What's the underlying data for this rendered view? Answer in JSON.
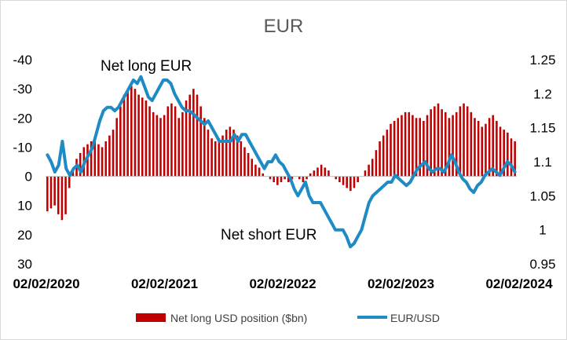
{
  "chart_data": {
    "type": "bar",
    "title": "EUR",
    "xlabel": "",
    "ylabel": "",
    "grid": false,
    "legend_position": "bottom",
    "x_tick_labels": [
      "02/02/2020",
      "02/02/2021",
      "02/02/2022",
      "02/02/2023",
      "02/02/2024"
    ],
    "y_left": {
      "inverted": true,
      "range": [
        -40,
        30
      ],
      "ticks": [
        "-40",
        "-30",
        "-20",
        "-10",
        "0",
        "10",
        "20",
        "30"
      ]
    },
    "y_right": {
      "range": [
        0.95,
        1.25
      ],
      "ticks": [
        "1.25",
        "1.2",
        "1.15",
        "1.1",
        "1.05",
        "1",
        "0.95"
      ]
    },
    "annotations": [
      "Net long EUR",
      "Net short EUR"
    ],
    "series": [
      {
        "name": "Net long USD position ($bn)",
        "type": "bar",
        "axis": "left",
        "color": "#c00000",
        "values": [
          12,
          11,
          10,
          13,
          15,
          13,
          4,
          -2,
          -6,
          -8,
          -10,
          -11,
          -12,
          -12,
          -11,
          -10,
          -12,
          -14,
          -16,
          -20,
          -24,
          -28,
          -30,
          -31,
          -30,
          -28,
          -27,
          -26,
          -24,
          -22,
          -21,
          -20,
          -21,
          -24,
          -25,
          -24,
          -20,
          -22,
          -26,
          -28,
          -30,
          -28,
          -24,
          -20,
          -16,
          -13,
          -12,
          -13,
          -14,
          -16,
          -17,
          -16,
          -14,
          -12,
          -10,
          -8,
          -6,
          -4,
          -3,
          -1,
          0,
          1,
          2,
          3,
          2,
          1,
          2,
          1,
          0,
          1,
          2,
          1,
          -1,
          -2,
          -3,
          -4,
          -3,
          -2,
          0,
          1,
          2,
          3,
          4,
          5,
          4,
          2,
          0,
          -2,
          -4,
          -6,
          -9,
          -12,
          -14,
          -16,
          -18,
          -19,
          -20,
          -21,
          -22,
          -22,
          -21,
          -20,
          -20,
          -19,
          -21,
          -23,
          -24,
          -25,
          -23,
          -22,
          -20,
          -21,
          -22,
          -24,
          -25,
          -24,
          -22,
          -20,
          -19,
          -17,
          -18,
          -20,
          -21,
          -19,
          -17,
          -16,
          -15,
          -13,
          -12
        ]
      },
      {
        "name": "EUR/USD",
        "type": "line",
        "axis": "right",
        "color": "#1f8bc4",
        "values": [
          1.11,
          1.1,
          1.085,
          1.095,
          1.13,
          1.09,
          1.08,
          1.09,
          1.095,
          1.085,
          1.1,
          1.11,
          1.12,
          1.14,
          1.16,
          1.175,
          1.18,
          1.18,
          1.175,
          1.18,
          1.19,
          1.2,
          1.21,
          1.22,
          1.215,
          1.225,
          1.21,
          1.195,
          1.19,
          1.2,
          1.21,
          1.22,
          1.22,
          1.215,
          1.2,
          1.19,
          1.18,
          1.175,
          1.175,
          1.17,
          1.165,
          1.16,
          1.155,
          1.16,
          1.15,
          1.14,
          1.13,
          1.13,
          1.13,
          1.13,
          1.14,
          1.13,
          1.14,
          1.14,
          1.13,
          1.12,
          1.11,
          1.1,
          1.09,
          1.1,
          1.1,
          1.11,
          1.1,
          1.095,
          1.085,
          1.075,
          1.06,
          1.05,
          1.06,
          1.07,
          1.05,
          1.04,
          1.04,
          1.04,
          1.03,
          1.02,
          1.01,
          1.0,
          1.0,
          1.0,
          0.99,
          0.975,
          0.98,
          0.99,
          1.0,
          1.02,
          1.04,
          1.05,
          1.055,
          1.06,
          1.065,
          1.07,
          1.07,
          1.08,
          1.075,
          1.07,
          1.065,
          1.07,
          1.08,
          1.09,
          1.095,
          1.1,
          1.09,
          1.085,
          1.09,
          1.09,
          1.085,
          1.095,
          1.11,
          1.1,
          1.085,
          1.075,
          1.07,
          1.06,
          1.055,
          1.065,
          1.07,
          1.08,
          1.085,
          1.09,
          1.085,
          1.08,
          1.09,
          1.1,
          1.095,
          1.085
        ]
      }
    ]
  }
}
